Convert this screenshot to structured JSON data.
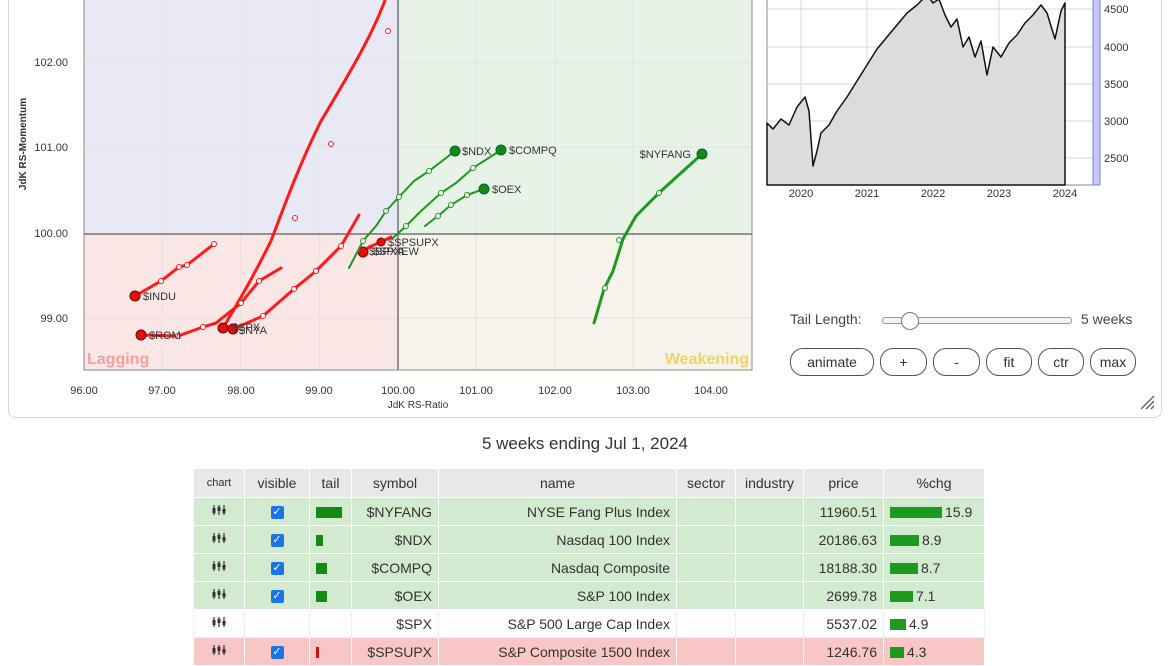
{
  "rrg": {
    "x_axis_label": "JdK RS-Ratio",
    "y_axis_label": "JdK RS-Momentum",
    "x_ticks": [
      "96.00",
      "97.00",
      "98.00",
      "99.00",
      "100.00",
      "101.00",
      "102.00",
      "103.00",
      "104.00"
    ],
    "y_ticks": [
      "102.00",
      "101.00",
      "100.00",
      "99.00"
    ],
    "quadrant_lagging": "Lagging",
    "quadrant_weakening": "Weakening",
    "labels": {
      "nyfang": "$NYFANG",
      "ndx": "$NDX",
      "compq": "$COMPQ",
      "oex": "$OEX",
      "spsupx": "$SPSUPX",
      "indu": "$INDU",
      "nya": "$NYA",
      "rom": "$ROM",
      "spx_overlap": "$SPX",
      "misc1": "$SPXA",
      "misc2": "$SPXEW"
    },
    "colors": {
      "green_tail": "#1b9a1b",
      "red_tail": "#ff1a1a",
      "lagging_fill": "#fbe6e6",
      "improving_fill": "#e9e9f6",
      "leading_fill": "#e8f3e8",
      "weakening_fill": "#f6f3ea"
    }
  },
  "benchmark": {
    "y_ticks": [
      "4500",
      "4000",
      "3500",
      "3000",
      "2500"
    ],
    "x_ticks": [
      "2020",
      "2021",
      "2022",
      "2023",
      "2024"
    ]
  },
  "controls": {
    "tail_length_label": "Tail Length:",
    "tail_length_value": "5 weeks",
    "tail_length_fraction": 0.15,
    "buttons": [
      "animate",
      "+",
      "-",
      "fit",
      "ctr",
      "max"
    ]
  },
  "caption": "5 weeks ending Jul 1, 2024",
  "table": {
    "headers": [
      "chart",
      "visible",
      "tail",
      "symbol",
      "name",
      "sector",
      "industry",
      "price",
      "%chg"
    ],
    "rows": [
      {
        "symbol": "$NYFANG",
        "name": "NYSE Fang Plus Index",
        "sector": "",
        "industry": "",
        "price": "11960.51",
        "chg": "15.9",
        "visible": true,
        "row_color": "green"
      },
      {
        "symbol": "$NDX",
        "name": "Nasdaq 100 Index",
        "sector": "",
        "industry": "",
        "price": "20186.63",
        "chg": "8.9",
        "visible": true,
        "row_color": "green"
      },
      {
        "symbol": "$COMPQ",
        "name": "Nasdaq Composite",
        "sector": "",
        "industry": "",
        "price": "18188.30",
        "chg": "8.7",
        "visible": true,
        "row_color": "green"
      },
      {
        "symbol": "$OEX",
        "name": "S&P 100 Index",
        "sector": "",
        "industry": "",
        "price": "2699.78",
        "chg": "7.1",
        "visible": true,
        "row_color": "green"
      },
      {
        "symbol": "$SPX",
        "name": "S&P 500 Large Cap Index",
        "sector": "",
        "industry": "",
        "price": "5537.02",
        "chg": "4.9",
        "visible": false,
        "row_color": "white"
      },
      {
        "symbol": "$SPSUPX",
        "name": "S&P Composite 1500 Index",
        "sector": "",
        "industry": "",
        "price": "1246.76",
        "chg": "4.3",
        "visible": true,
        "row_color": "red"
      }
    ]
  }
}
